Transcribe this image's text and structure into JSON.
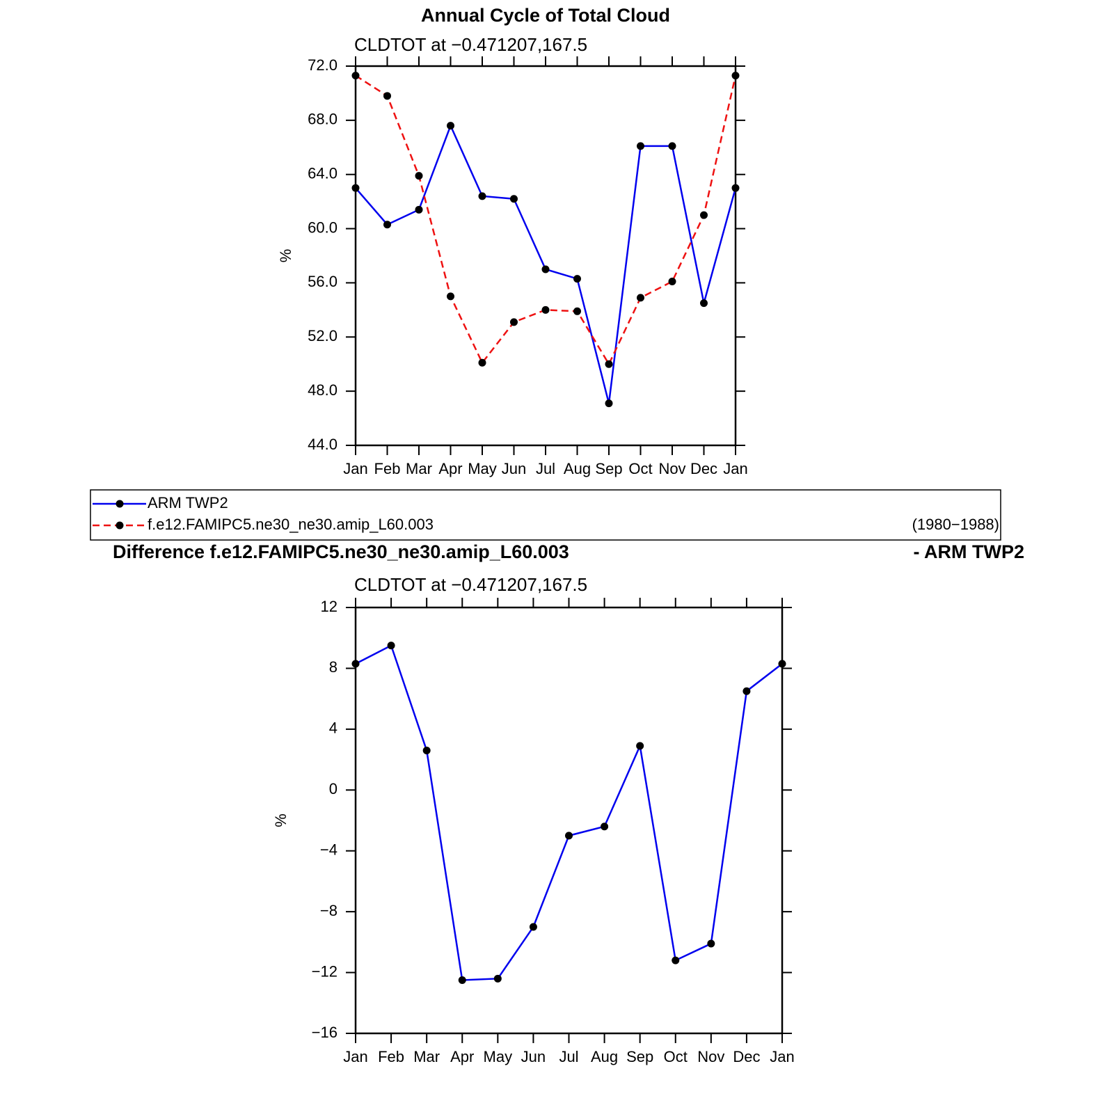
{
  "chart_data": [
    {
      "type": "line",
      "title": "Annual Cycle of Total Cloud",
      "subtitle": "CLDTOT at −0.471207,167.5",
      "y_label": "%",
      "categories": [
        "Jan",
        "Feb",
        "Mar",
        "Apr",
        "May",
        "Jun",
        "Jul",
        "Aug",
        "Sep",
        "Oct",
        "Nov",
        "Dec",
        "Jan"
      ],
      "series": [
        {
          "name": "ARM TWP2",
          "color": "#0000ee",
          "line_style": "solid",
          "values": [
            63.0,
            60.3,
            61.4,
            67.6,
            62.4,
            62.2,
            57.0,
            56.3,
            47.1,
            66.1,
            66.1,
            54.5,
            63.0
          ]
        },
        {
          "name": "f.e12.FAMIPC5.ne30_ne30.amip_L60.003",
          "color": "#ee1111",
          "line_style": "dashed",
          "values": [
            71.3,
            69.8,
            63.9,
            55.0,
            50.1,
            53.1,
            54.0,
            53.9,
            50.0,
            54.9,
            56.1,
            61.0,
            71.3
          ]
        }
      ],
      "legend_note": "(1980−1988)",
      "ylim": [
        44,
        72
      ],
      "yticks": [
        {
          "value": 44,
          "label": "44.0"
        },
        {
          "value": 48,
          "label": "48.0"
        },
        {
          "value": 52,
          "label": "52.0"
        },
        {
          "value": 56,
          "label": "56.0"
        },
        {
          "value": 60,
          "label": "60.0"
        },
        {
          "value": 64,
          "label": "64.0"
        },
        {
          "value": 68,
          "label": "68.0"
        },
        {
          "value": 72,
          "label": "72.0"
        }
      ]
    },
    {
      "type": "line",
      "title": "Difference f.e12.FAMIPC5.ne30_ne30.amip_L60.003",
      "title_right": "- ARM TWP2",
      "subtitle": "CLDTOT at −0.471207,167.5",
      "y_label": "%",
      "categories": [
        "Jan",
        "Feb",
        "Mar",
        "Apr",
        "May",
        "Jun",
        "Jul",
        "Aug",
        "Sep",
        "Oct",
        "Nov",
        "Dec",
        "Jan"
      ],
      "series": [
        {
          "color": "#0000ee",
          "line_style": "solid",
          "values": [
            8.3,
            9.5,
            2.6,
            -12.5,
            -12.4,
            -9.0,
            -3.0,
            -2.4,
            2.9,
            -11.2,
            -10.1,
            6.5,
            8.3
          ]
        }
      ],
      "ylim": [
        -16,
        12
      ],
      "yticks": [
        {
          "value": -16,
          "label": "−16"
        },
        {
          "value": -12,
          "label": "−12"
        },
        {
          "value": -8,
          "label": "−8"
        },
        {
          "value": -4,
          "label": "−4"
        },
        0,
        4,
        8,
        12
      ]
    }
  ]
}
